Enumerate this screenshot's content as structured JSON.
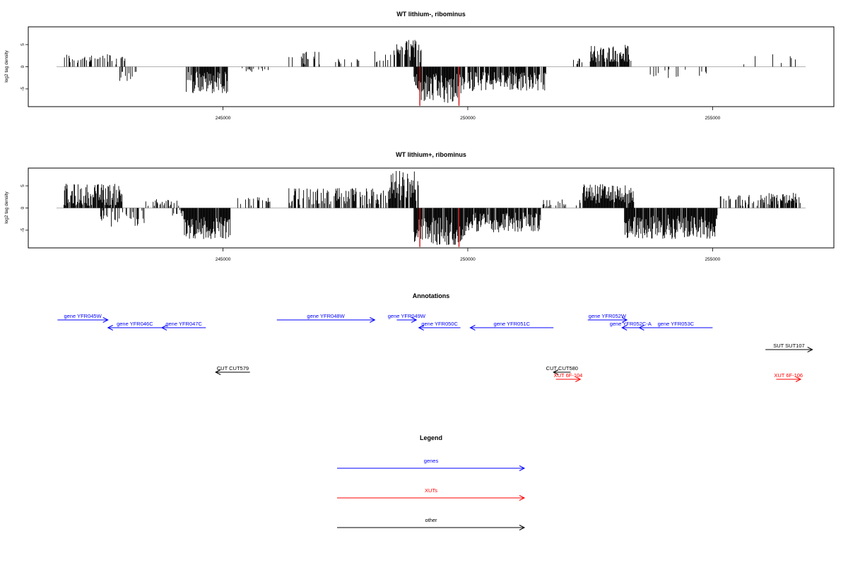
{
  "chart_data": [
    {
      "type": "bar",
      "title": "WT lithium-, ribominus",
      "ylabel": "log2 tag density",
      "xlim": [
        241600,
        256900
      ],
      "ylim": [
        -9,
        9
      ],
      "xticks": [
        245000,
        250000,
        255000
      ],
      "yticks": [
        -5,
        0,
        5
      ],
      "highlight_color": "#cc0000",
      "highlights": [
        {
          "x": 249020,
          "y": -8.8
        },
        {
          "x": 249820,
          "y": -8.8
        }
      ],
      "clusters": [
        {
          "start": 241750,
          "end": 243000,
          "min": 0.5,
          "max": 3.0,
          "sign": 1,
          "density": 0.35
        },
        {
          "start": 242800,
          "end": 243350,
          "min": 0.8,
          "max": 3.5,
          "sign": -1,
          "density": 0.3
        },
        {
          "start": 244250,
          "end": 245100,
          "min": 1.0,
          "max": 6.0,
          "sign": -1,
          "density": 0.85
        },
        {
          "start": 245300,
          "end": 245950,
          "min": 0.3,
          "max": 1.5,
          "sign": -1,
          "density": 0.15
        },
        {
          "start": 246300,
          "end": 247000,
          "min": 0.5,
          "max": 3.5,
          "sign": 1,
          "density": 0.3
        },
        {
          "start": 247300,
          "end": 247900,
          "min": 0.5,
          "max": 2.0,
          "sign": 1,
          "density": 0.15
        },
        {
          "start": 248100,
          "end": 248800,
          "min": 0.5,
          "max": 3.8,
          "sign": 1,
          "density": 0.3
        },
        {
          "start": 248550,
          "end": 249050,
          "min": 1.0,
          "max": 6.2,
          "sign": 1,
          "density": 0.75
        },
        {
          "start": 248900,
          "end": 249950,
          "min": 1.5,
          "max": 8.3,
          "sign": -1,
          "density": 0.9
        },
        {
          "start": 250000,
          "end": 251600,
          "min": 1.0,
          "max": 5.5,
          "sign": -1,
          "density": 0.85
        },
        {
          "start": 252100,
          "end": 252400,
          "min": 0.5,
          "max": 2.5,
          "sign": 1,
          "density": 0.25
        },
        {
          "start": 252500,
          "end": 253350,
          "min": 1.0,
          "max": 5.0,
          "sign": 1,
          "density": 0.85
        },
        {
          "start": 253600,
          "end": 254900,
          "min": 0.3,
          "max": 3.0,
          "sign": -1,
          "density": 0.12
        },
        {
          "start": 255200,
          "end": 256800,
          "min": 0.5,
          "max": 3.0,
          "sign": 1,
          "density": 0.06
        }
      ]
    },
    {
      "type": "bar",
      "title": "WT lithium+, ribominus",
      "ylabel": "log2 tag density",
      "xlim": [
        241600,
        256900
      ],
      "ylim": [
        -9,
        9
      ],
      "xticks": [
        245000,
        250000,
        255000
      ],
      "yticks": [
        -5,
        0,
        5
      ],
      "highlight_color": "#cc0000",
      "highlights": [
        {
          "x": 249020,
          "y": -8.8
        },
        {
          "x": 249820,
          "y": -8.8
        }
      ],
      "clusters": [
        {
          "start": 241750,
          "end": 242950,
          "min": 0.5,
          "max": 5.5,
          "sign": 1,
          "density": 0.85
        },
        {
          "start": 242500,
          "end": 243400,
          "min": 0.5,
          "max": 4.5,
          "sign": -1,
          "density": 0.5
        },
        {
          "start": 243400,
          "end": 244200,
          "min": 0.3,
          "max": 2.0,
          "sign": 1,
          "density": 0.3
        },
        {
          "start": 243900,
          "end": 244200,
          "min": 0.3,
          "max": 2.0,
          "sign": -1,
          "density": 0.3
        },
        {
          "start": 244200,
          "end": 245150,
          "min": 2.0,
          "max": 7.0,
          "sign": -1,
          "density": 0.95
        },
        {
          "start": 245300,
          "end": 246000,
          "min": 0.5,
          "max": 2.5,
          "sign": 1,
          "density": 0.3
        },
        {
          "start": 246300,
          "end": 248400,
          "min": 0.5,
          "max": 4.5,
          "sign": 1,
          "density": 0.55
        },
        {
          "start": 248400,
          "end": 249000,
          "min": 1.5,
          "max": 8.5,
          "sign": 1,
          "density": 0.9
        },
        {
          "start": 248900,
          "end": 249950,
          "min": 2.0,
          "max": 8.5,
          "sign": -1,
          "density": 0.95
        },
        {
          "start": 249950,
          "end": 251500,
          "min": 1.0,
          "max": 5.5,
          "sign": -1,
          "density": 0.85
        },
        {
          "start": 251500,
          "end": 252300,
          "min": 0.3,
          "max": 2.0,
          "sign": 1,
          "density": 0.2
        },
        {
          "start": 252350,
          "end": 253400,
          "min": 1.0,
          "max": 5.5,
          "sign": 1,
          "density": 0.95
        },
        {
          "start": 253200,
          "end": 255100,
          "min": 1.5,
          "max": 7.0,
          "sign": -1,
          "density": 0.95
        },
        {
          "start": 255100,
          "end": 256100,
          "min": 0.3,
          "max": 3.0,
          "sign": 1,
          "density": 0.3
        },
        {
          "start": 256050,
          "end": 256800,
          "min": 0.5,
          "max": 3.5,
          "sign": 1,
          "density": 0.6
        }
      ]
    }
  ],
  "annotations": {
    "title": "Annotations",
    "xlim": [
      241600,
      256900
    ],
    "colors": {
      "gene": "#0000ff",
      "xut": "#ff0000",
      "other": "#000000"
    },
    "features": [
      {
        "label": "gene YFR045W",
        "start": 241620,
        "end": 242650,
        "strand": "+",
        "row": 1,
        "kind": "gene"
      },
      {
        "label": "gene YFR046C",
        "start": 242650,
        "end": 243750,
        "strand": "-",
        "row": 2,
        "kind": "gene"
      },
      {
        "label": "gene YFR047C",
        "start": 243750,
        "end": 244650,
        "strand": "-",
        "row": 2,
        "kind": "gene"
      },
      {
        "label": "gene YFR048W",
        "start": 246100,
        "end": 248100,
        "strand": "+",
        "row": 1,
        "kind": "gene"
      },
      {
        "label": "gene YFR049W",
        "start": 248550,
        "end": 248950,
        "strand": "+",
        "row": 1,
        "kind": "gene"
      },
      {
        "label": "gene YFR050C",
        "start": 249000,
        "end": 249850,
        "strand": "-",
        "row": 2,
        "kind": "gene"
      },
      {
        "label": "gene YFR051C",
        "start": 250050,
        "end": 251750,
        "strand": "-",
        "row": 2,
        "kind": "gene"
      },
      {
        "label": "gene YFR052W",
        "start": 252450,
        "end": 253250,
        "strand": "+",
        "row": 1,
        "kind": "gene"
      },
      {
        "label": "gene YFR052C-A",
        "start": 253150,
        "end": 253500,
        "strand": "-",
        "row": 2,
        "kind": "gene"
      },
      {
        "label": "gene YFR053C",
        "start": 253500,
        "end": 255000,
        "strand": "-",
        "row": 2,
        "kind": "gene"
      },
      {
        "label": "SUT SUT107",
        "start": 256080,
        "end": 257040,
        "strand": "+",
        "row": 4,
        "kind": "other"
      },
      {
        "label": "CUT CUT579",
        "start": 244850,
        "end": 245550,
        "strand": "-",
        "row": 6,
        "kind": "other"
      },
      {
        "label": "CUT CUT580",
        "start": 251750,
        "end": 252100,
        "strand": "-",
        "row": 6,
        "kind": "other"
      },
      {
        "label": "XUT 6F-104",
        "start": 251800,
        "end": 252300,
        "strand": "+",
        "row": 7,
        "kind": "xut"
      },
      {
        "label": "XUT 6F-106",
        "start": 256300,
        "end": 256800,
        "strand": "+",
        "row": 7,
        "kind": "xut"
      }
    ]
  },
  "legend": {
    "title": "Legend",
    "items": [
      {
        "label": "genes",
        "color": "#0000ff"
      },
      {
        "label": "XUTs",
        "color": "#ff0000"
      },
      {
        "label": "other",
        "color": "#000000"
      }
    ]
  }
}
